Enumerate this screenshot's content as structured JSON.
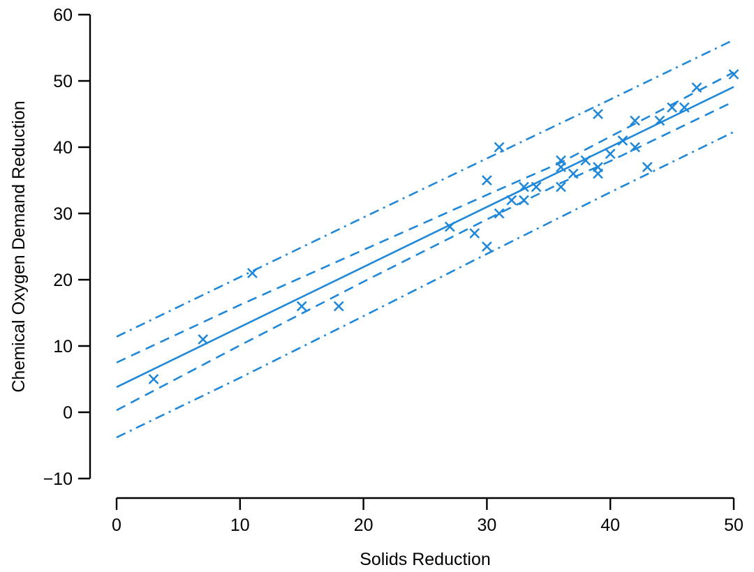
{
  "chart_data": {
    "type": "scatter",
    "xlabel": "Solids Reduction",
    "ylabel": "Chemical Oxygen Demand Reduction",
    "xlim": [
      0,
      50
    ],
    "ylim": [
      -10,
      60
    ],
    "x_ticks": [
      0,
      10,
      20,
      30,
      40,
      50
    ],
    "x_tick_labels": [
      "0",
      "10",
      "20",
      "30",
      "40",
      "50"
    ],
    "y_ticks": [
      -10,
      0,
      10,
      20,
      30,
      40,
      50,
      60
    ],
    "y_tick_labels": [
      "−10",
      "0",
      "10",
      "20",
      "30",
      "40",
      "50",
      "60"
    ],
    "grid": false,
    "color": "#1f87d8",
    "marker": "x",
    "points": [
      {
        "x": 3,
        "y": 5
      },
      {
        "x": 7,
        "y": 11
      },
      {
        "x": 11,
        "y": 21
      },
      {
        "x": 15,
        "y": 16
      },
      {
        "x": 18,
        "y": 16
      },
      {
        "x": 27,
        "y": 28
      },
      {
        "x": 29,
        "y": 27
      },
      {
        "x": 30,
        "y": 25
      },
      {
        "x": 30,
        "y": 35
      },
      {
        "x": 31,
        "y": 30
      },
      {
        "x": 31,
        "y": 40
      },
      {
        "x": 32,
        "y": 32
      },
      {
        "x": 33,
        "y": 32
      },
      {
        "x": 33,
        "y": 34
      },
      {
        "x": 34,
        "y": 34
      },
      {
        "x": 36,
        "y": 37
      },
      {
        "x": 36,
        "y": 38
      },
      {
        "x": 36,
        "y": 34
      },
      {
        "x": 37,
        "y": 36
      },
      {
        "x": 38,
        "y": 38
      },
      {
        "x": 39,
        "y": 37
      },
      {
        "x": 39,
        "y": 36
      },
      {
        "x": 39,
        "y": 45
      },
      {
        "x": 40,
        "y": 39
      },
      {
        "x": 41,
        "y": 41
      },
      {
        "x": 42,
        "y": 40
      },
      {
        "x": 42,
        "y": 44
      },
      {
        "x": 43,
        "y": 37
      },
      {
        "x": 44,
        "y": 44
      },
      {
        "x": 45,
        "y": 46
      },
      {
        "x": 46,
        "y": 46
      },
      {
        "x": 47,
        "y": 49
      },
      {
        "x": 50,
        "y": 51
      }
    ],
    "fit_line": {
      "style": "solid",
      "x": [
        0,
        50
      ],
      "y": [
        3.8,
        49.1
      ]
    },
    "confidence_band": {
      "style": "dashed",
      "x": [
        0,
        10,
        20,
        30,
        36,
        40,
        50
      ],
      "lower": [
        0.3,
        10.1,
        19.7,
        29.1,
        34.6,
        37.9,
        46.9
      ],
      "upper": [
        7.5,
        16.2,
        24.5,
        32.8,
        37.7,
        41.6,
        51.3
      ]
    },
    "prediction_band": {
      "style": "dash-dot",
      "x": [
        0,
        10,
        20,
        30,
        40,
        50
      ],
      "lower": [
        -3.8,
        5.2,
        14.5,
        23.9,
        33.2,
        42.3
      ],
      "upper": [
        11.4,
        20.4,
        29.4,
        38.3,
        47.2,
        56.2
      ]
    }
  }
}
